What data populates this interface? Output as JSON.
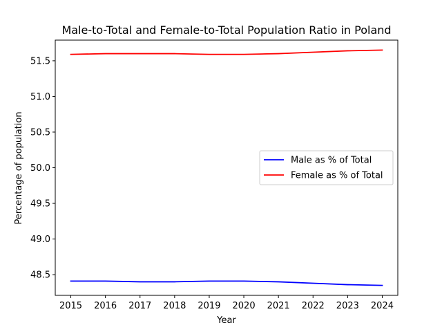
{
  "chart_data": {
    "type": "line",
    "title": "Male-to-Total and Female-to-Total Population Ratio in Poland",
    "xlabel": "Year",
    "ylabel": "Percentage of population",
    "x": [
      2015,
      2016,
      2017,
      2018,
      2019,
      2020,
      2021,
      2022,
      2023,
      2024
    ],
    "xlim": [
      2014.55,
      2024.45
    ],
    "ylim": [
      48.21,
      51.79
    ],
    "yticks": [
      48.5,
      49.0,
      49.5,
      50.0,
      50.5,
      51.0,
      51.5
    ],
    "ytick_labels": [
      "48.5",
      "49.0",
      "49.5",
      "50.0",
      "50.5",
      "51.0",
      "51.5"
    ],
    "xtick_labels": [
      "2015",
      "2016",
      "2017",
      "2018",
      "2019",
      "2020",
      "2021",
      "2022",
      "2023",
      "2024"
    ],
    "grid": false,
    "legend_position": "center-right",
    "series": [
      {
        "name": "Male as % of Total",
        "color": "#0000ff",
        "values": [
          48.41,
          48.41,
          48.4,
          48.4,
          48.41,
          48.41,
          48.4,
          48.38,
          48.36,
          48.35
        ]
      },
      {
        "name": "Female as % of Total",
        "color": "#ff0000",
        "values": [
          51.59,
          51.6,
          51.6,
          51.6,
          51.59,
          51.59,
          51.6,
          51.62,
          51.64,
          51.65
        ]
      }
    ]
  }
}
